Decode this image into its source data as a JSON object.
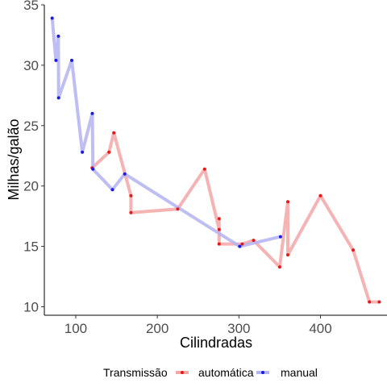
{
  "chart_data": {
    "type": "line",
    "xlabel": "Cilindradas",
    "ylabel": "Milhas/galão",
    "xlim": [
      61.5,
      482.5
    ],
    "ylim": [
      9.3,
      35.0
    ],
    "x_ticks": [
      100,
      200,
      300,
      400
    ],
    "y_ticks": [
      10,
      15,
      20,
      25,
      30,
      35
    ],
    "grid": false,
    "legend": {
      "position": "bottom",
      "title": "Transmissão"
    },
    "series": [
      {
        "name": "automática",
        "line_color": "#f4a6a6",
        "point_color": "#e81818",
        "points": [
          {
            "x": 120.1,
            "y": 21.5
          },
          {
            "x": 140.8,
            "y": 22.8
          },
          {
            "x": 146.7,
            "y": 24.4
          },
          {
            "x": 167.6,
            "y": 19.2
          },
          {
            "x": 167.6,
            "y": 17.8
          },
          {
            "x": 225.0,
            "y": 18.1
          },
          {
            "x": 258.0,
            "y": 21.4
          },
          {
            "x": 275.8,
            "y": 16.4
          },
          {
            "x": 275.8,
            "y": 17.3
          },
          {
            "x": 275.8,
            "y": 15.2
          },
          {
            "x": 304.0,
            "y": 15.2
          },
          {
            "x": 318.0,
            "y": 15.5
          },
          {
            "x": 350.0,
            "y": 13.3
          },
          {
            "x": 360.0,
            "y": 18.7
          },
          {
            "x": 360.0,
            "y": 14.3
          },
          {
            "x": 400.0,
            "y": 19.2
          },
          {
            "x": 440.0,
            "y": 14.7
          },
          {
            "x": 460.0,
            "y": 10.4
          },
          {
            "x": 472.0,
            "y": 10.4
          }
        ]
      },
      {
        "name": "manual",
        "line_color": "#b3b3f2",
        "point_color": "#1a1ae6",
        "points": [
          {
            "x": 71.1,
            "y": 33.9
          },
          {
            "x": 75.7,
            "y": 30.4
          },
          {
            "x": 78.7,
            "y": 32.4
          },
          {
            "x": 79.0,
            "y": 27.3
          },
          {
            "x": 95.1,
            "y": 30.4
          },
          {
            "x": 108.0,
            "y": 22.8
          },
          {
            "x": 120.3,
            "y": 26.0
          },
          {
            "x": 121.0,
            "y": 21.4
          },
          {
            "x": 145.0,
            "y": 19.7
          },
          {
            "x": 160.0,
            "y": 21.0
          },
          {
            "x": 301.0,
            "y": 15.0
          },
          {
            "x": 351.0,
            "y": 15.8
          }
        ]
      }
    ]
  }
}
